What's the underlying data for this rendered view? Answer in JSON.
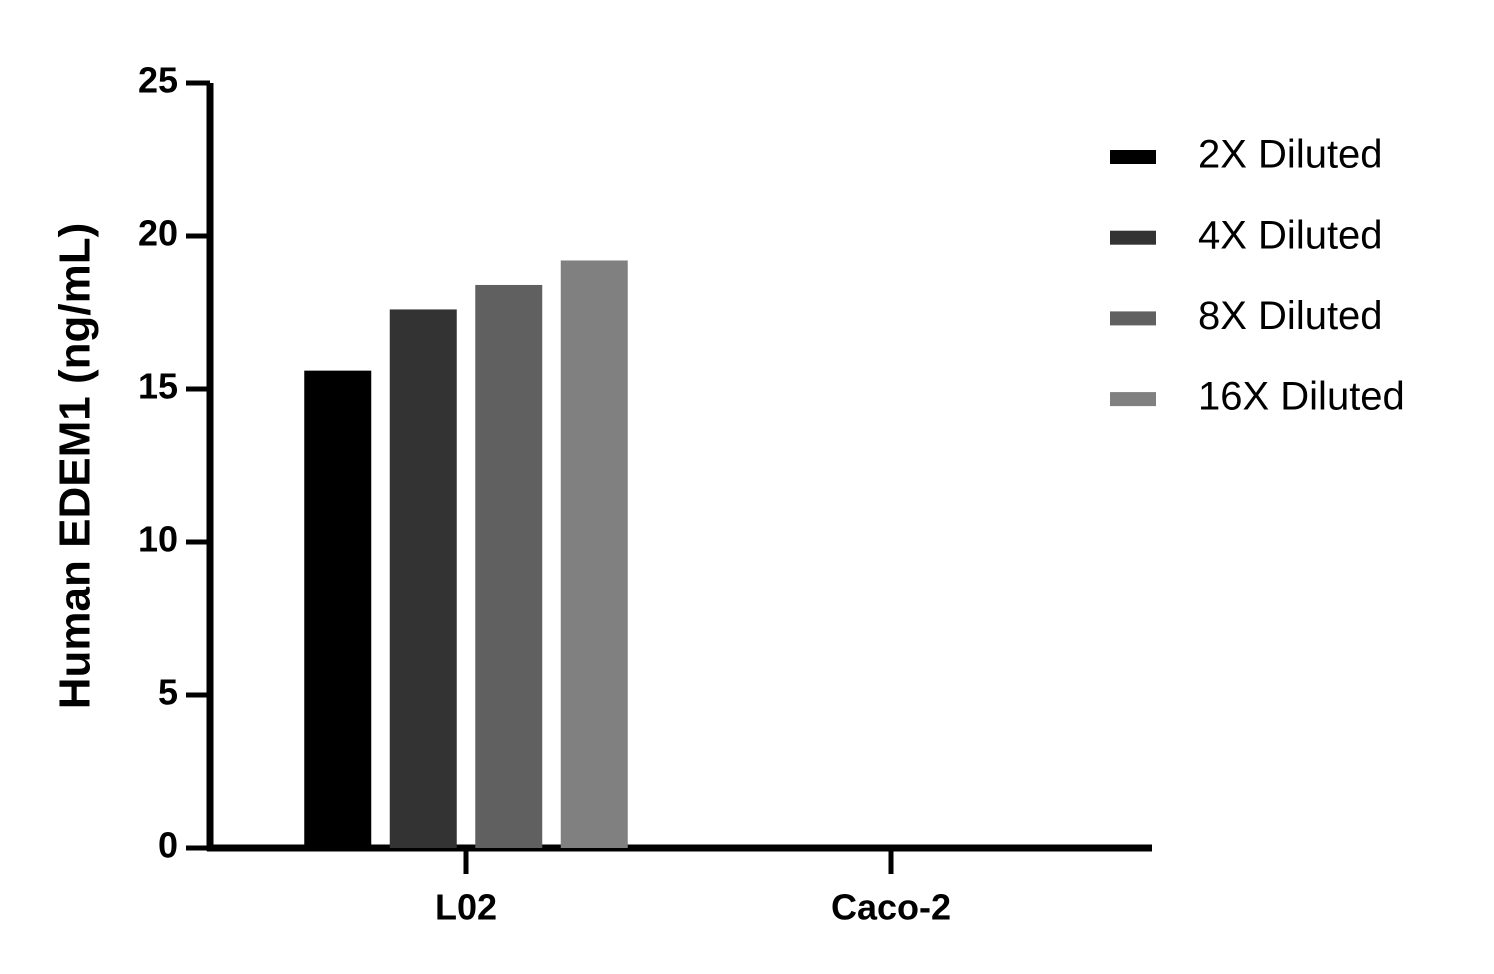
{
  "chart_data": {
    "type": "bar",
    "y_label": "Human EDEM1 (ng/mL)",
    "categories": [
      "L02",
      "Caco-2"
    ],
    "series": [
      {
        "name": "2X Diluted",
        "color": "#000000",
        "values": [
          15.6,
          0
        ]
      },
      {
        "name": "4X Diluted",
        "color": "#333333",
        "values": [
          17.6,
          0
        ]
      },
      {
        "name": "8X Diluted",
        "color": "#606060",
        "values": [
          18.4,
          0
        ]
      },
      {
        "name": "16X Diluted",
        "color": "#808080",
        "values": [
          19.2,
          0
        ]
      }
    ],
    "ylim": [
      0,
      25
    ],
    "yticks": [
      0,
      5,
      10,
      15,
      20,
      25
    ],
    "grid": false,
    "legend": "right"
  }
}
